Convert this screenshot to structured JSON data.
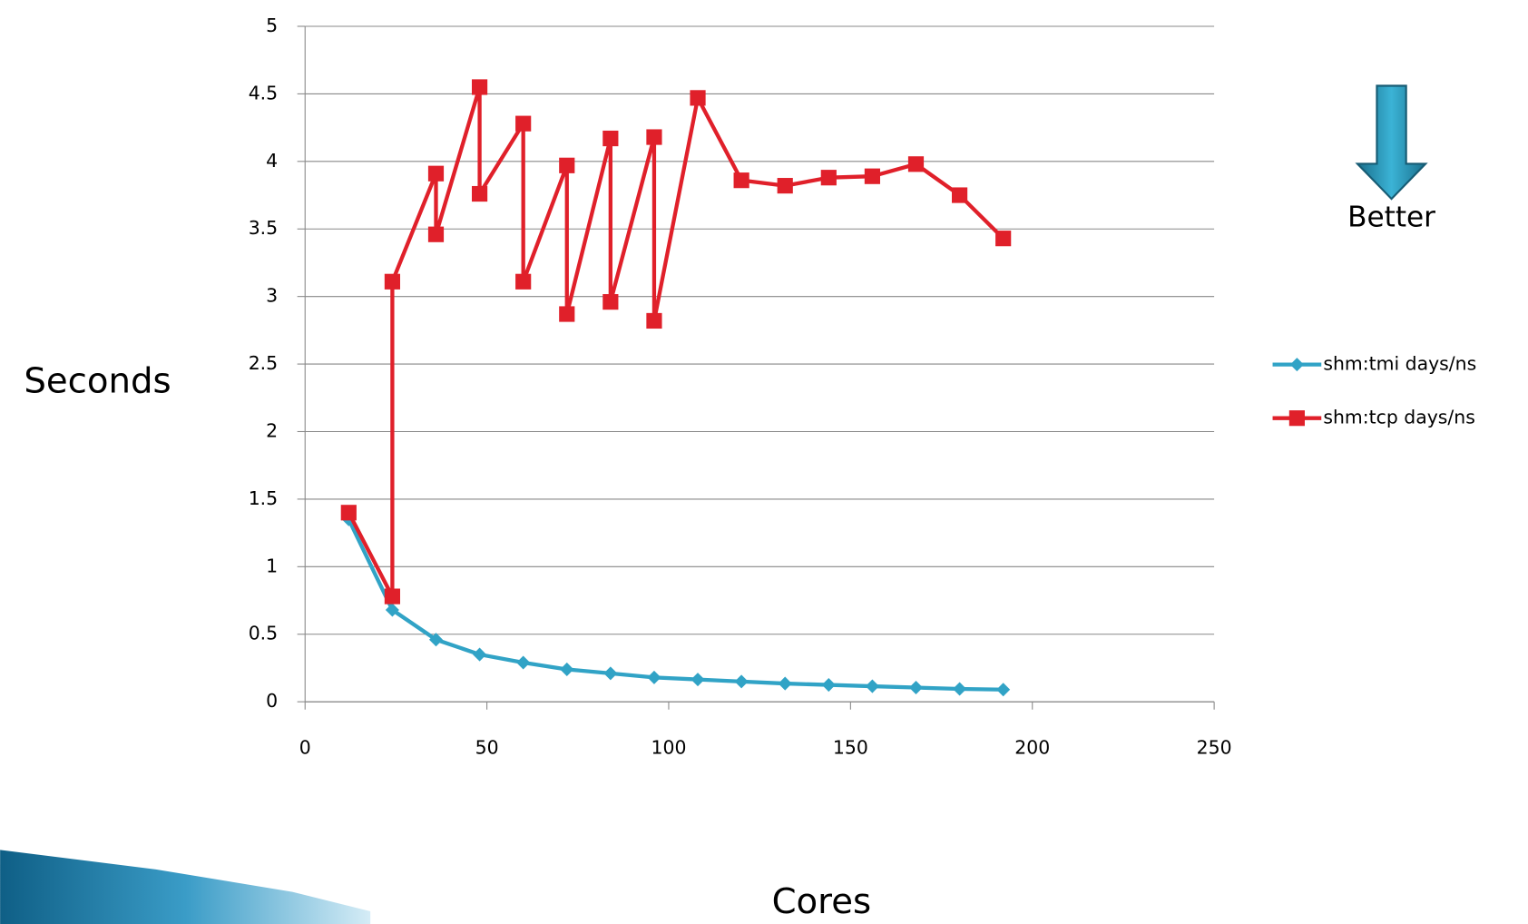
{
  "chart_data": {
    "type": "line",
    "y_label": "Seconds",
    "x_label": "Cores",
    "annotation": "Better",
    "xlim": [
      0,
      250
    ],
    "xticks": [
      0,
      50,
      100,
      150,
      200,
      250
    ],
    "ylim": [
      0,
      5
    ],
    "yticks": [
      0,
      0.5,
      1,
      1.5,
      2,
      2.5,
      3,
      3.5,
      4,
      4.5,
      5
    ],
    "grid": true,
    "legend": "right",
    "series": [
      {
        "name": "shm:tmi days/ns",
        "color": "#31a3c6",
        "marker": "diamond",
        "x": [
          12,
          24,
          36,
          48,
          60,
          72,
          84,
          96,
          108,
          120,
          132,
          144,
          156,
          168,
          180,
          192
        ],
        "values": [
          1.35,
          0.68,
          0.46,
          0.35,
          0.29,
          0.24,
          0.21,
          0.18,
          0.165,
          0.15,
          0.135,
          0.125,
          0.115,
          0.105,
          0.095,
          0.09
        ]
      },
      {
        "name": "shm:tcp days/ns",
        "color": "#e0202a",
        "marker": "square",
        "x": [
          12,
          24,
          24,
          36,
          36,
          48,
          48,
          60,
          60,
          72,
          72,
          84,
          84,
          96,
          96,
          108,
          120,
          132,
          144,
          156,
          168,
          180,
          192
        ],
        "values": [
          1.4,
          0.78,
          3.11,
          3.91,
          3.46,
          4.55,
          3.76,
          4.28,
          3.11,
          3.97,
          2.87,
          4.17,
          2.96,
          4.18,
          2.82,
          4.47,
          3.86,
          3.82,
          3.88,
          3.89,
          3.98,
          3.75,
          3.43
        ]
      }
    ]
  }
}
